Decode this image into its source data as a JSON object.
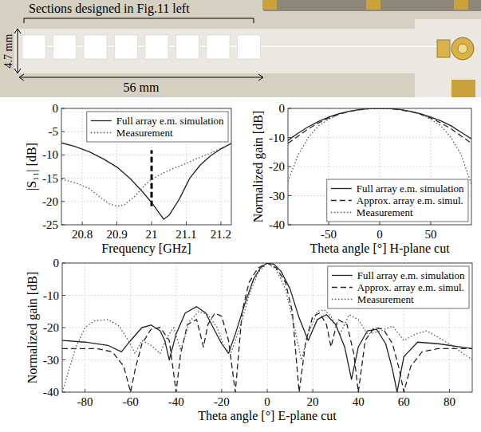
{
  "photo": {
    "annotation": "Sections designed in Fig.11 left",
    "height_label": "4.7 mm",
    "length_label": "56 mm"
  },
  "chart_data": [
    {
      "type": "line",
      "xlabel": "Frequency [GHz]",
      "ylabel": "|S₁₁| [dB]",
      "xlim": [
        20.74,
        21.23
      ],
      "xticks": [
        20.8,
        20.9,
        21,
        21.1,
        21.2
      ],
      "ylim": [
        -25,
        0
      ],
      "yticks": [
        -25,
        -20,
        -15,
        -10,
        -5,
        0
      ],
      "grid": true,
      "legend": "upper right",
      "series": [
        {
          "name": "Full array e.m. simulation",
          "color": "#222222",
          "line_style": "solid",
          "x": [
            20.74,
            20.78,
            20.82,
            20.86,
            20.9,
            20.94,
            20.97,
            21.0,
            21.02,
            21.035,
            21.05,
            21.08,
            21.11,
            21.14,
            21.17,
            21.2,
            21.23
          ],
          "values": [
            -7.4,
            -8.2,
            -9.3,
            -10.8,
            -12.6,
            -15.2,
            -17.6,
            -20.2,
            -22.3,
            -23.8,
            -23,
            -19.5,
            -15,
            -12.2,
            -10.2,
            -8.7,
            -7.5
          ]
        },
        {
          "name": "Measurement",
          "color": "#555555",
          "line_style": "dotted",
          "x": [
            20.74,
            20.78,
            20.82,
            20.85,
            20.88,
            20.9,
            20.92,
            20.95,
            20.98,
            21.0,
            21.03,
            21.06,
            21.1,
            21.14,
            21.18,
            21.21,
            21.23
          ],
          "values": [
            -15.2,
            -16,
            -17.2,
            -19,
            -20.6,
            -21,
            -20.8,
            -19,
            -16.5,
            -15.3,
            -14,
            -13,
            -11.8,
            -10.5,
            -9.3,
            -8.2,
            -7.6
          ]
        }
      ],
      "reference_line": {
        "x": 21,
        "y": [
          -21,
          -9
        ],
        "line_style": "dashed",
        "color": "#000000"
      }
    },
    {
      "type": "line",
      "xlabel": "Theta angle [°] H-plane cut",
      "ylabel": "Normalized gain [dB]",
      "xlim": [
        -90,
        90
      ],
      "xticks": [
        -50,
        0,
        50
      ],
      "ylim": [
        -40,
        0
      ],
      "yticks": [
        -40,
        -30,
        -20,
        -10,
        0
      ],
      "grid": true,
      "legend": "lower right",
      "x": [
        -90,
        -80,
        -70,
        -60,
        -50,
        -40,
        -30,
        -20,
        -10,
        0,
        10,
        20,
        30,
        40,
        50,
        60,
        70,
        80,
        90
      ],
      "series": [
        {
          "name": "Full array e.m. simulation",
          "color": "#222222",
          "line_style": "solid",
          "values": [
            -11,
            -8.5,
            -6.3,
            -4.5,
            -3,
            -1.8,
            -1,
            -0.4,
            -0.1,
            0,
            -0.1,
            -0.4,
            -1,
            -1.8,
            -3,
            -4.3,
            -6,
            -8.2,
            -10.5
          ]
        },
        {
          "name": "Approx. array e.m. simul.",
          "color": "#222222",
          "line_style": "dashed",
          "values": [
            -12,
            -9.5,
            -7,
            -5,
            -3.3,
            -2,
            -1.1,
            -0.5,
            -0.1,
            0,
            -0.1,
            -0.5,
            -1.1,
            -2,
            -3.3,
            -5,
            -7,
            -9.5,
            -12
          ]
        },
        {
          "name": "Measurement",
          "color": "#555555",
          "line_style": "dotted",
          "values": [
            -25,
            -16,
            -10,
            -6,
            -3.7,
            -2,
            -1,
            -0.4,
            -0.1,
            0,
            -0.1,
            -0.4,
            -1,
            -2,
            -3.7,
            -6,
            -10,
            -16,
            -26
          ]
        }
      ]
    },
    {
      "type": "line",
      "xlabel": "Theta angle [°] E-plane cut",
      "ylabel": "Normalized gain [dB]",
      "xlim": [
        -90,
        90
      ],
      "xticks": [
        -80,
        -60,
        -40,
        -20,
        0,
        20,
        40,
        60,
        80
      ],
      "ylim": [
        -40,
        0
      ],
      "yticks": [
        -40,
        -30,
        -20,
        -10,
        0
      ],
      "grid": true,
      "legend": "upper right",
      "series": [
        {
          "name": "Full array e.m. simulation",
          "color": "#222222",
          "line_style": "solid",
          "x": [
            -90,
            -80,
            -70,
            -64,
            -60,
            -55,
            -51,
            -47,
            -45,
            -43,
            -40,
            -36,
            -31,
            -27,
            -23,
            -20,
            -17,
            -14,
            -10,
            -6,
            -3,
            0,
            3,
            6,
            10,
            14,
            18,
            22,
            26,
            30,
            34,
            37,
            40,
            44,
            48,
            52,
            55,
            57,
            60,
            66,
            75,
            85,
            90
          ],
          "values": [
            -24,
            -24.5,
            -25.5,
            -27.5,
            -24,
            -20,
            -19.2,
            -21,
            -24,
            -30,
            -22,
            -15.5,
            -13.5,
            -15.5,
            -21,
            -25,
            -28,
            -22,
            -13,
            -5,
            -1.5,
            0,
            -0.4,
            -2.5,
            -8,
            -17,
            -24,
            -17.5,
            -16,
            -19,
            -26,
            -36,
            -26,
            -21,
            -20.5,
            -25,
            -33,
            -40,
            -29,
            -24.5,
            -25,
            -26,
            -26.5
          ]
        },
        {
          "name": "Approx. array e.m. simul.",
          "color": "#222222",
          "line_style": "dashed",
          "x": [
            -90,
            -82,
            -75,
            -68,
            -63,
            -60,
            -58,
            -55,
            -51,
            -47,
            -43,
            -40,
            -38,
            -35,
            -31,
            -28,
            -26,
            -23,
            -20,
            -17,
            -14,
            -11,
            -8,
            -4,
            0,
            4,
            8,
            11,
            14,
            17,
            20,
            23,
            26,
            28,
            31,
            35,
            38,
            40,
            43,
            47,
            51,
            55,
            58,
            60,
            63,
            68,
            75,
            82,
            90
          ],
          "values": [
            -26.5,
            -26.5,
            -26.5,
            -27.5,
            -32,
            -40,
            -33,
            -25,
            -20.5,
            -20,
            -24,
            -40,
            -28,
            -19,
            -17.5,
            -26,
            -19,
            -15.5,
            -16.5,
            -24,
            -40,
            -15,
            -6,
            -1.5,
            0,
            -1.5,
            -6,
            -15,
            -40,
            -24,
            -16.5,
            -15.5,
            -19,
            -26,
            -17.5,
            -19,
            -28,
            -40,
            -24,
            -20,
            -20.5,
            -25,
            -33,
            -40,
            -32,
            -27.5,
            -26.5,
            -26.5,
            -26.5
          ]
        },
        {
          "name": "Measurement",
          "color": "#555555",
          "line_style": "dotted",
          "x": [
            -90,
            -87,
            -84,
            -80,
            -76,
            -70,
            -65,
            -61,
            -58,
            -55,
            -51,
            -47,
            -44,
            -41,
            -38,
            -34,
            -30,
            -26,
            -22,
            -19,
            -16,
            -12,
            -8,
            -4,
            0,
            4,
            8,
            12,
            15,
            18,
            22,
            25,
            28,
            32,
            36,
            40,
            44,
            50,
            55,
            60,
            65,
            70,
            75,
            82,
            88,
            90
          ],
          "values": [
            -40,
            -33,
            -26,
            -20,
            -18,
            -17.5,
            -19.5,
            -24,
            -28,
            -24,
            -25.5,
            -28,
            -23,
            -20,
            -27,
            -18,
            -15,
            -16,
            -20,
            -26,
            -28,
            -20,
            -10,
            -3,
            0,
            -2,
            -8,
            -20,
            -30,
            -22,
            -15,
            -14.5,
            -16.5,
            -22,
            -16,
            -17.5,
            -22,
            -21,
            -19.5,
            -24,
            -22,
            -21,
            -23,
            -26,
            -29,
            -30
          ]
        }
      ]
    }
  ]
}
